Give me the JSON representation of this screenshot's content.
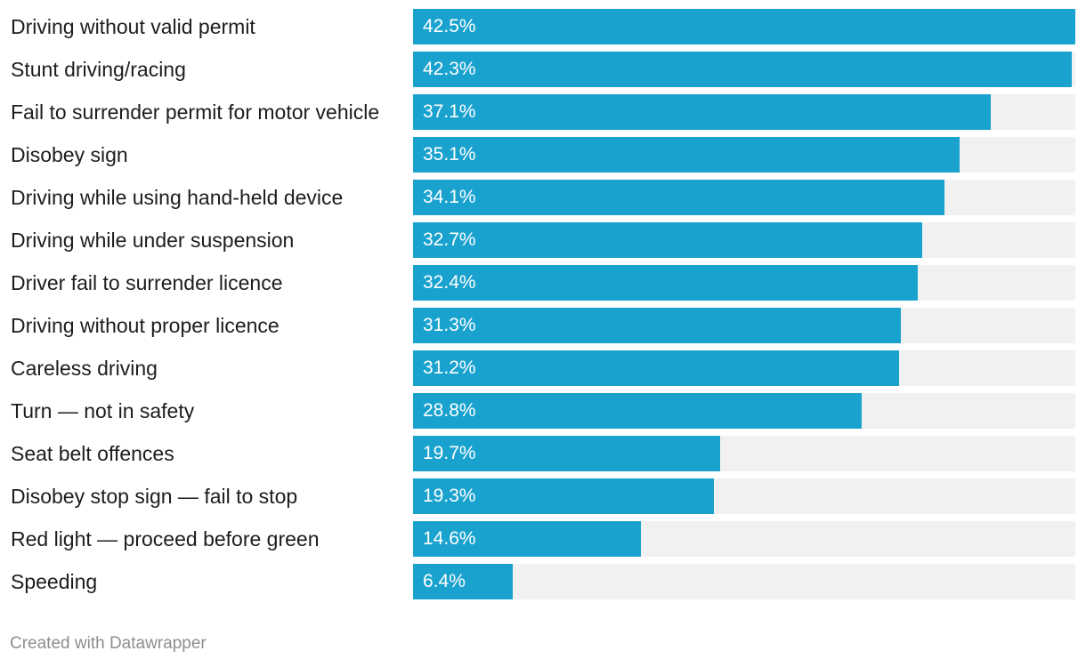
{
  "chart_data": {
    "type": "bar",
    "orientation": "horizontal",
    "categories": [
      "Driving without valid permit",
      "Stunt driving/racing",
      "Fail to surrender permit for motor vehicle",
      "Disobey sign",
      "Driving while using hand-held device",
      "Driving while under suspension",
      "Driver fail to surrender licence",
      "Driving without proper licence",
      "Careless driving",
      "Turn — not in safety",
      "Seat belt offences",
      "Disobey stop sign — fail to stop",
      "Red light — proceed before green",
      "Speeding"
    ],
    "values": [
      42.5,
      42.3,
      37.1,
      35.1,
      34.1,
      32.7,
      32.4,
      31.3,
      31.2,
      28.8,
      19.7,
      19.3,
      14.6,
      6.4
    ],
    "value_labels": [
      "42.5%",
      "42.3%",
      "37.1%",
      "35.1%",
      "34.1%",
      "32.7%",
      "32.4%",
      "31.3%",
      "31.2%",
      "28.8%",
      "19.7%",
      "19.3%",
      "14.6%",
      "6.4%"
    ],
    "xlim": [
      0,
      42.5
    ],
    "bar_color": "#1aa2cf",
    "track_color": "#f1f1f1",
    "title": "",
    "xlabel": "",
    "ylabel": ""
  },
  "footer": {
    "credit": "Created with Datawrapper"
  }
}
